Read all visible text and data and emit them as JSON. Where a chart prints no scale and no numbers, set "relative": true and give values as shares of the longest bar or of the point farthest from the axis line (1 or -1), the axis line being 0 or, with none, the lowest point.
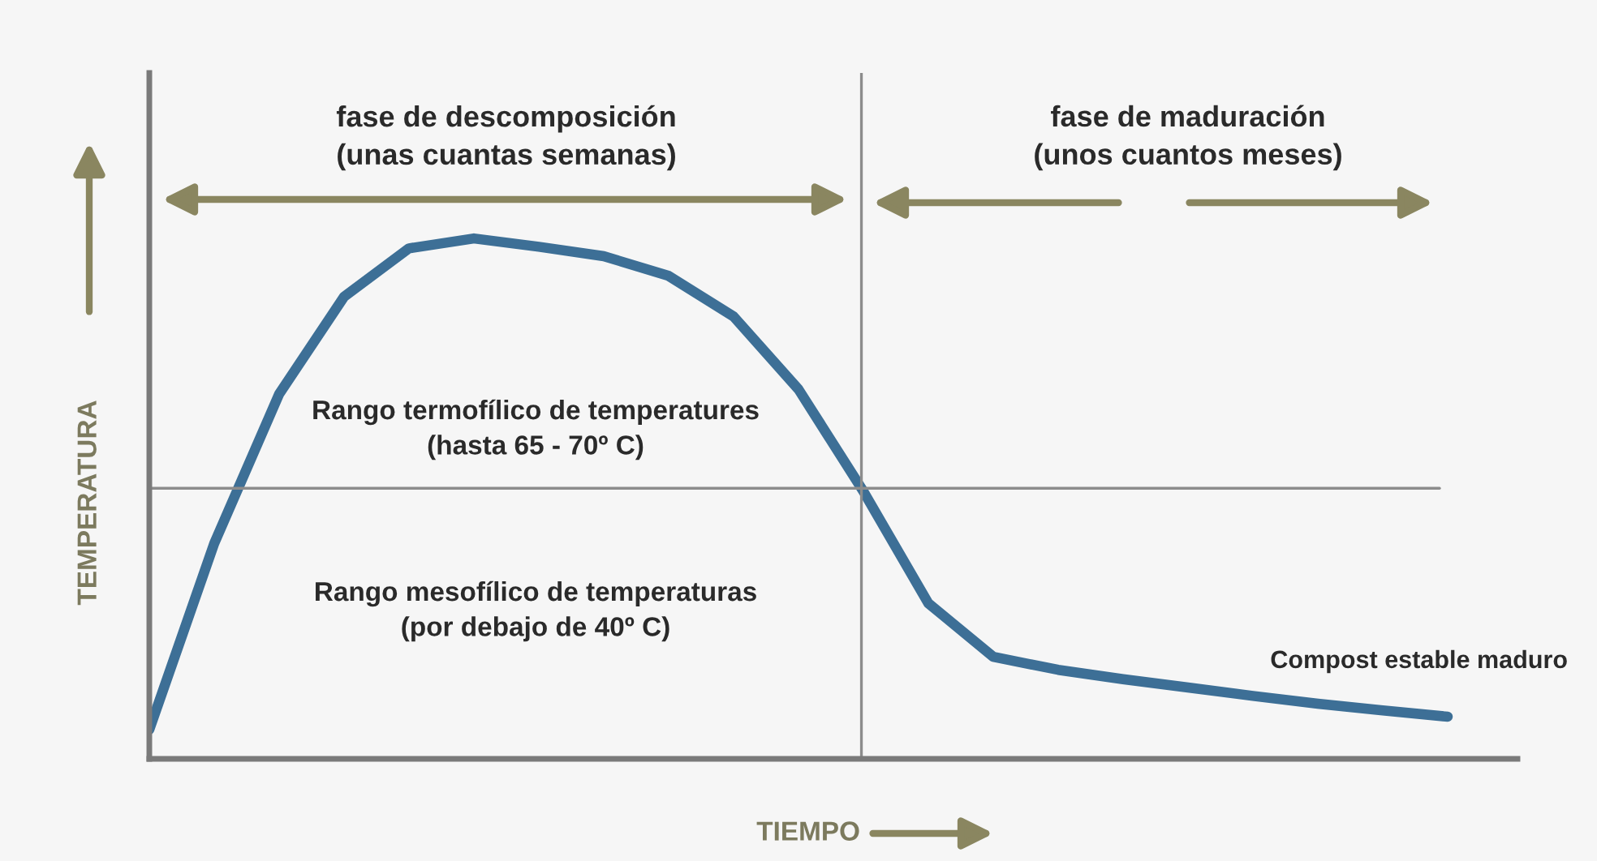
{
  "chart_data": {
    "type": "line",
    "relative": true,
    "xlabel": "TIEMPO",
    "ylabel": "TEMPERATURA",
    "categories": [
      null,
      null,
      null,
      null,
      null,
      null,
      null,
      null,
      null,
      null,
      null,
      null,
      null,
      null,
      null,
      null,
      null,
      null,
      null,
      null,
      null
    ],
    "series": [
      {
        "color": "#3d6f96",
        "values": [
          0.056,
          0.414,
          0.701,
          0.888,
          0.981,
          1,
          0.984,
          0.966,
          0.928,
          0.85,
          0.71,
          0.514,
          0.299,
          0.196,
          0.171,
          0.153,
          0.137,
          0.121,
          0.106,
          0.093,
          0.081
        ]
      }
    ],
    "ref_lines": [
      {
        "axis": "y",
        "value": 0.52,
        "color": "#8c8c8c"
      }
    ],
    "annotations": [
      "fase de descomposición\n(unas cuantas semanas)",
      "fase de maduración\n(unos cuantos meses)",
      "Rango termofílico de temperatures\n(hasta 65 - 70º C)",
      "Rango mesofílico de temperaturas\n(por debajo de 40º C)",
      "Compost estable maduro"
    ],
    "legend": false,
    "marker": "none",
    "line_style": "solid"
  }
}
